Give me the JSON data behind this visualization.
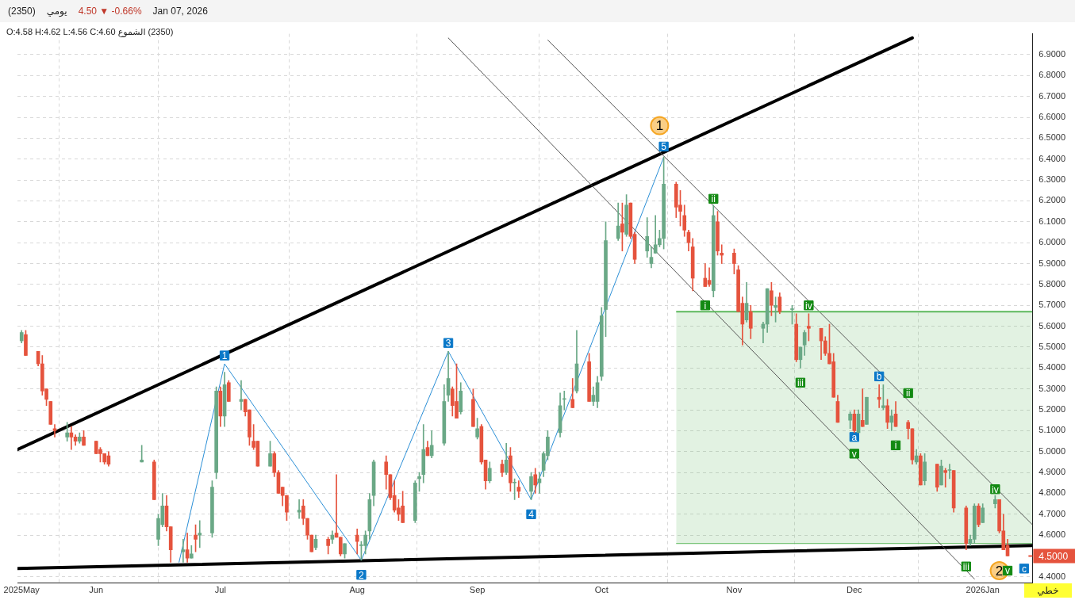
{
  "chart_data": {
    "type": "candlestick",
    "title": "(2350)",
    "subtitle": "يومي",
    "annotations": [
      "4.50 ▼ -0.66%",
      "Jan 07, 2026",
      "(2350) الشموع O:4.58 H:4.62 L:4.56 C:4.60",
      "خطي",
      {
        "text": "1",
        "x": "2025-07-02",
        "y": 5.46
      },
      {
        "text": "2",
        "x": "2025-08-04",
        "y": 4.41
      },
      {
        "text": "3",
        "x": "2025-08-25",
        "y": 5.52
      },
      {
        "text": "4",
        "x": "2025-09-14",
        "y": 4.7
      },
      {
        "text": "5",
        "x": "2025-10-16",
        "y": 6.46
      },
      {
        "text": "a",
        "x": "2025-12-01",
        "y": 5.07
      },
      {
        "text": "b",
        "x": "2025-12-07",
        "y": 5.36
      },
      {
        "text": "c",
        "x": "2026-01-11",
        "y": 4.44
      },
      {
        "text": "i",
        "x": "2025-10-26",
        "y": 5.7
      },
      {
        "text": "ii",
        "x": "2025-10-28",
        "y": 6.21
      },
      {
        "text": "iii",
        "x": "2025-11-18",
        "y": 5.33
      },
      {
        "text": "iv",
        "x": "2025-11-20",
        "y": 5.7
      },
      {
        "text": "v",
        "x": "2025-12-01",
        "y": 4.99
      },
      {
        "text": "i",
        "x": "2025-12-11",
        "y": 5.03
      },
      {
        "text": "ii",
        "x": "2025-12-14",
        "y": 5.28
      },
      {
        "text": "iii",
        "x": "2025-12-28",
        "y": 4.45
      },
      {
        "text": "iv",
        "x": "2026-01-04",
        "y": 4.82
      },
      {
        "text": "v",
        "x": "2026-01-07",
        "y": 4.43
      },
      {
        "text": "1",
        "x": "2025-10-15",
        "y": 6.56
      },
      {
        "text": "2",
        "x": "2026-01-05",
        "y": 4.43
      }
    ],
    "x": [
      "2025-05-14",
      "2025-05-15",
      "2025-05-18",
      "2025-05-19",
      "2025-05-20",
      "2025-05-21",
      "2025-05-22",
      "2025-05-25",
      "2025-05-26",
      "2025-05-27",
      "2025-05-28",
      "2025-05-29",
      "2025-06-01",
      "2025-06-02",
      "2025-06-03",
      "2025-06-04",
      "2025-06-12",
      "2025-06-15",
      "2025-06-16",
      "2025-06-17",
      "2025-06-18",
      "2025-06-19",
      "2025-06-22",
      "2025-06-23",
      "2025-06-24",
      "2025-06-25",
      "2025-06-26",
      "2025-06-29",
      "2025-06-30",
      "2025-07-01",
      "2025-07-02",
      "2025-07-03",
      "2025-07-06",
      "2025-07-07",
      "2025-07-08",
      "2025-07-09",
      "2025-07-10",
      "2025-07-13",
      "2025-07-14",
      "2025-07-15",
      "2025-07-16",
      "2025-07-17",
      "2025-07-20",
      "2025-07-21",
      "2025-07-22",
      "2025-07-23",
      "2025-07-24",
      "2025-07-27",
      "2025-07-28",
      "2025-07-29",
      "2025-07-30",
      "2025-07-31",
      "2025-08-03",
      "2025-08-04",
      "2025-08-05",
      "2025-08-06",
      "2025-08-07",
      "2025-08-10",
      "2025-08-11",
      "2025-08-12",
      "2025-08-13",
      "2025-08-14",
      "2025-08-17",
      "2025-08-18",
      "2025-08-19",
      "2025-08-20",
      "2025-08-21",
      "2025-08-24",
      "2025-08-25",
      "2025-08-26",
      "2025-08-27",
      "2025-08-28",
      "2025-08-31",
      "2025-09-01",
      "2025-09-02",
      "2025-09-03",
      "2025-09-04",
      "2025-09-07",
      "2025-09-08",
      "2025-09-09",
      "2025-09-10",
      "2025-09-11",
      "2025-09-14",
      "2025-09-15",
      "2025-09-16",
      "2025-09-17",
      "2025-09-18",
      "2025-09-21",
      "2025-09-22",
      "2025-09-24",
      "2025-09-25",
      "2025-09-28",
      "2025-09-29",
      "2025-09-30",
      "2025-10-01",
      "2025-10-02",
      "2025-10-05",
      "2025-10-06",
      "2025-10-07",
      "2025-10-08",
      "2025-10-09",
      "2025-10-12",
      "2025-10-13",
      "2025-10-14",
      "2025-10-15",
      "2025-10-16",
      "2025-10-19",
      "2025-10-20",
      "2025-10-21",
      "2025-10-22",
      "2025-10-23",
      "2025-10-26",
      "2025-10-27",
      "2025-10-28",
      "2025-10-29",
      "2025-10-30",
      "2025-11-02",
      "2025-11-03",
      "2025-11-04",
      "2025-11-05",
      "2025-11-06",
      "2025-11-09",
      "2025-11-10",
      "2025-11-11",
      "2025-11-12",
      "2025-11-13",
      "2025-11-16",
      "2025-11-17",
      "2025-11-18",
      "2025-11-19",
      "2025-11-20",
      "2025-11-23",
      "2025-11-24",
      "2025-11-25",
      "2025-11-26",
      "2025-11-27",
      "2025-11-30",
      "2025-12-01",
      "2025-12-02",
      "2025-12-03",
      "2025-12-04",
      "2025-12-07",
      "2025-12-08",
      "2025-12-09",
      "2025-12-10",
      "2025-12-11",
      "2025-12-14",
      "2025-12-15",
      "2025-12-16",
      "2025-12-17",
      "2025-12-18",
      "2025-12-21",
      "2025-12-22",
      "2025-12-23",
      "2025-12-24",
      "2025-12-25",
      "2025-12-28",
      "2025-12-29",
      "2025-12-30",
      "2025-12-31",
      "2026-01-01",
      "2026-01-04",
      "2026-01-05",
      "2026-01-06",
      "2026-01-07"
    ],
    "ohlc": [
      [
        5.53,
        5.58,
        5.52,
        5.57
      ],
      [
        5.56,
        5.58,
        5.46,
        5.46
      ],
      [
        5.48,
        5.48,
        5.41,
        5.42
      ],
      [
        5.42,
        5.46,
        5.27,
        5.29
      ],
      [
        5.3,
        5.3,
        5.22,
        5.25
      ],
      [
        5.24,
        5.24,
        5.13,
        5.13
      ],
      [
        5.11,
        5.13,
        5.07,
        5.1
      ],
      [
        5.07,
        5.14,
        5.05,
        5.09
      ],
      [
        5.09,
        5.12,
        5.01,
        5.07
      ],
      [
        5.07,
        5.08,
        5.03,
        5.05
      ],
      [
        5.05,
        5.09,
        5.04,
        5.07
      ],
      [
        5.07,
        5.1,
        5.03,
        5.03
      ],
      [
        5.05,
        5.05,
        4.99,
        4.99
      ],
      [
        5.01,
        5.02,
        4.95,
        4.99
      ],
      [
        4.99,
        4.99,
        4.94,
        4.95
      ],
      [
        4.98,
        5.0,
        4.93,
        4.94
      ],
      [
        4.95,
        5.03,
        4.95,
        4.96
      ],
      [
        4.95,
        4.96,
        4.77,
        4.77
      ],
      [
        4.58,
        4.7,
        4.55,
        4.68
      ],
      [
        4.65,
        4.8,
        4.64,
        4.74
      ],
      [
        4.74,
        4.79,
        4.62,
        4.64
      ],
      [
        4.64,
        4.64,
        4.47,
        4.53
      ],
      [
        4.52,
        4.58,
        4.47,
        4.53
      ],
      [
        4.53,
        4.61,
        4.47,
        4.49
      ],
      [
        4.49,
        4.55,
        4.49,
        4.51
      ],
      [
        4.6,
        4.65,
        4.52,
        4.58
      ],
      [
        4.6,
        4.67,
        4.54,
        4.61
      ],
      [
        4.61,
        4.86,
        4.59,
        4.83
      ],
      [
        4.9,
        5.31,
        4.87,
        5.29
      ],
      [
        5.29,
        5.31,
        5.12,
        5.17
      ],
      [
        5.17,
        5.38,
        5.12,
        5.32
      ],
      [
        5.33,
        5.34,
        5.24,
        5.24
      ],
      [
        5.24,
        5.34,
        5.2,
        5.25
      ],
      [
        5.25,
        5.25,
        5.17,
        5.19
      ],
      [
        5.2,
        5.2,
        5.03,
        5.07
      ],
      [
        5.05,
        5.13,
        5.01,
        5.02
      ],
      [
        5.05,
        5.05,
        4.93,
        4.93
      ],
      [
        4.93,
        5.05,
        4.93,
        4.99
      ],
      [
        4.99,
        5.0,
        4.88,
        4.9
      ],
      [
        4.9,
        4.91,
        4.8,
        4.8
      ],
      [
        4.83,
        4.83,
        4.74,
        4.79
      ],
      [
        4.79,
        4.79,
        4.67,
        4.71
      ],
      [
        4.71,
        4.77,
        4.68,
        4.72
      ],
      [
        4.74,
        4.77,
        4.65,
        4.68
      ],
      [
        4.68,
        4.68,
        4.58,
        4.6
      ],
      [
        4.6,
        4.6,
        4.52,
        4.52
      ],
      [
        4.54,
        4.6,
        4.53,
        4.58
      ],
      [
        4.58,
        4.59,
        4.51,
        4.55
      ],
      [
        4.58,
        4.62,
        4.56,
        4.6
      ],
      [
        4.61,
        4.89,
        4.59,
        4.59
      ],
      [
        4.59,
        4.59,
        4.5,
        4.51
      ],
      [
        4.51,
        4.56,
        4.49,
        4.56
      ],
      [
        4.6,
        4.63,
        4.51,
        4.57
      ],
      [
        4.55,
        4.57,
        4.48,
        4.55
      ],
      [
        4.55,
        4.62,
        4.51,
        4.6
      ],
      [
        4.62,
        4.8,
        4.58,
        4.77
      ],
      [
        4.79,
        4.96,
        4.74,
        4.95
      ],
      [
        4.95,
        4.98,
        4.82,
        4.89
      ],
      [
        4.89,
        4.89,
        4.77,
        4.78
      ],
      [
        4.79,
        4.86,
        4.71,
        4.72
      ],
      [
        4.73,
        4.77,
        4.67,
        4.7
      ],
      [
        4.74,
        4.81,
        4.66,
        4.66
      ],
      [
        4.67,
        4.86,
        4.66,
        4.85
      ],
      [
        4.87,
        4.9,
        4.81,
        4.88
      ],
      [
        4.89,
        5.13,
        4.85,
        5.01
      ],
      [
        5.02,
        5.05,
        4.98,
        4.98
      ],
      [
        4.98,
        5.1,
        4.97,
        5.03
      ],
      [
        5.04,
        5.32,
        5.03,
        5.24
      ],
      [
        5.27,
        5.48,
        5.24,
        5.35
      ],
      [
        5.3,
        5.31,
        5.17,
        5.22
      ],
      [
        5.24,
        5.42,
        5.16,
        5.16
      ],
      [
        5.19,
        5.33,
        5.18,
        5.29
      ],
      [
        5.25,
        5.3,
        5.12,
        5.12
      ],
      [
        5.07,
        5.16,
        5.06,
        5.11
      ],
      [
        5.12,
        5.13,
        4.94,
        4.95
      ],
      [
        4.96,
        4.96,
        4.82,
        4.86
      ],
      [
        4.86,
        4.95,
        4.85,
        4.92
      ],
      [
        4.94,
        4.96,
        4.88,
        4.9
      ],
      [
        4.9,
        5.04,
        4.89,
        4.96
      ],
      [
        4.98,
        5.02,
        4.81,
        4.85
      ],
      [
        4.85,
        4.87,
        4.77,
        4.85
      ],
      [
        4.83,
        4.86,
        4.78,
        4.81
      ],
      [
        4.81,
        4.9,
        4.77,
        4.88
      ],
      [
        4.89,
        4.92,
        4.8,
        4.84
      ],
      [
        4.85,
        4.9,
        4.8,
        4.87
      ],
      [
        4.91,
        5.0,
        4.88,
        4.99
      ],
      [
        4.98,
        5.1,
        4.96,
        5.07
      ],
      [
        5.09,
        5.28,
        5.07,
        5.22
      ],
      [
        5.25,
        5.29,
        5.2,
        5.25
      ],
      [
        5.25,
        5.35,
        5.21,
        5.21
      ],
      [
        5.29,
        5.58,
        5.28,
        5.42
      ],
      [
        5.43,
        5.47,
        5.24,
        5.24
      ],
      [
        5.24,
        5.31,
        5.22,
        5.27
      ],
      [
        5.24,
        5.36,
        5.21,
        5.33
      ],
      [
        5.36,
        5.69,
        5.34,
        5.65
      ],
      [
        5.68,
        6.1,
        5.55,
        6.01
      ],
      [
        6.02,
        6.19,
        6.01,
        6.08
      ],
      [
        6.09,
        6.19,
        5.96,
        6.05
      ],
      [
        6.04,
        6.23,
        6.03,
        6.18
      ],
      [
        6.19,
        6.19,
        6.02,
        6.03
      ],
      [
        6.04,
        6.05,
        5.9,
        5.92
      ],
      [
        5.96,
        6.12,
        5.93,
        6.03
      ],
      [
        5.9,
        5.98,
        5.88,
        5.93
      ],
      [
        5.95,
        6.13,
        5.95,
        5.99
      ],
      [
        5.99,
        6.06,
        5.98,
        6.02
      ],
      [
        6.02,
        6.41,
        5.97,
        6.28
      ],
      [
        6.28,
        6.29,
        6.12,
        6.17
      ],
      [
        6.18,
        6.25,
        6.08,
        6.15
      ],
      [
        6.13,
        6.18,
        6.03,
        6.06
      ],
      [
        6.05,
        6.06,
        5.96,
        6.0
      ],
      [
        5.98,
        6.02,
        5.77,
        5.83
      ],
      [
        5.83,
        5.9,
        5.79,
        5.79
      ],
      [
        5.82,
        5.88,
        5.79,
        5.8
      ],
      [
        5.77,
        6.18,
        5.74,
        6.13
      ],
      [
        6.1,
        6.15,
        5.94,
        5.96
      ],
      [
        5.95,
        5.99,
        5.9,
        5.94
      ],
      [
        5.95,
        5.97,
        5.85,
        5.9
      ],
      [
        5.87,
        5.89,
        5.67,
        5.67
      ],
      [
        5.71,
        5.74,
        5.51,
        5.61
      ],
      [
        5.63,
        5.81,
        5.62,
        5.71
      ],
      [
        5.67,
        5.7,
        5.54,
        5.59
      ],
      [
        5.59,
        5.62,
        5.52,
        5.61
      ],
      [
        5.61,
        5.78,
        5.57,
        5.78
      ],
      [
        5.77,
        5.81,
        5.65,
        5.7
      ],
      [
        5.69,
        5.74,
        5.62,
        5.7
      ],
      [
        5.74,
        5.76,
        5.66,
        5.67
      ],
      [
        5.68,
        5.7,
        5.61,
        5.68
      ],
      [
        5.61,
        5.66,
        5.43,
        5.44
      ],
      [
        5.44,
        5.5,
        5.4,
        5.5
      ],
      [
        5.51,
        5.58,
        5.46,
        5.57
      ],
      [
        5.6,
        5.66,
        5.53,
        5.59
      ],
      [
        5.59,
        5.59,
        5.44,
        5.53
      ],
      [
        5.53,
        5.55,
        5.46,
        5.47
      ],
      [
        5.47,
        5.61,
        5.42,
        5.42
      ],
      [
        5.43,
        5.47,
        5.26,
        5.26
      ],
      [
        5.24,
        5.27,
        5.14,
        5.14
      ],
      [
        5.15,
        5.19,
        5.11,
        5.18
      ],
      [
        5.18,
        5.2,
        5.09,
        5.1
      ],
      [
        5.09,
        5.2,
        5.09,
        5.18
      ],
      [
        5.15,
        5.3,
        5.12,
        5.12
      ],
      [
        5.13,
        5.26,
        5.13,
        5.26
      ],
      [
        5.26,
        5.32,
        5.21,
        5.25
      ],
      [
        5.21,
        5.32,
        5.2,
        5.22
      ],
      [
        5.22,
        5.25,
        5.11,
        5.14
      ],
      [
        5.14,
        5.2,
        5.1,
        5.17
      ],
      [
        5.18,
        5.24,
        5.12,
        5.12
      ],
      [
        5.14,
        5.15,
        5.06,
        5.11
      ],
      [
        5.11,
        5.11,
        4.94,
        4.96
      ],
      [
        4.95,
        5.01,
        4.94,
        4.98
      ],
      [
        4.98,
        4.99,
        4.84,
        4.84
      ],
      [
        4.86,
        4.99,
        4.84,
        4.95
      ],
      [
        4.94,
        4.94,
        4.81,
        4.83
      ],
      [
        4.84,
        4.96,
        4.84,
        4.93
      ],
      [
        4.91,
        4.92,
        4.83,
        4.9
      ],
      [
        4.91,
        4.94,
        4.87,
        4.91
      ],
      [
        4.91,
        4.91,
        4.71,
        4.73
      ],
      [
        4.73,
        4.74,
        4.53,
        4.56
      ],
      [
        4.56,
        4.6,
        4.55,
        4.58
      ],
      [
        4.58,
        4.75,
        4.56,
        4.74
      ],
      [
        4.74,
        4.75,
        4.64,
        4.65
      ],
      [
        4.66,
        4.75,
        4.66,
        4.73
      ],
      [
        4.75,
        4.79,
        4.73,
        4.77
      ],
      [
        4.77,
        4.77,
        4.61,
        4.62
      ],
      [
        4.62,
        4.7,
        4.53,
        4.53
      ],
      [
        4.55,
        4.58,
        4.5,
        4.5
      ]
    ],
    "colors": [
      "#6aa886",
      "#e5533d",
      "#e5533d",
      "#e5533d",
      "#e5533d",
      "#e5533d",
      "#e5533d",
      "#6aa886",
      "#e5533d",
      "#e5533d",
      "#6aa886",
      "#e5533d",
      "#e5533d",
      "#e5533d",
      "#e5533d",
      "#e5533d",
      "#6aa886",
      "#e5533d",
      "#6aa886",
      "#6aa886",
      "#e5533d",
      "#e5533d",
      "#6aa886",
      "#e5533d",
      "#6aa886",
      "#e5533d",
      "#6aa886",
      "#6aa886",
      "#6aa886",
      "#e5533d",
      "#6aa886",
      "#e5533d",
      "#6aa886",
      "#e5533d",
      "#e5533d",
      "#e5533d",
      "#e5533d",
      "#6aa886",
      "#e5533d",
      "#e5533d",
      "#e5533d",
      "#e5533d",
      "#6aa886",
      "#e5533d",
      "#e5533d",
      "#e5533d",
      "#6aa886",
      "#e5533d",
      "#6aa886",
      "#e5533d",
      "#e5533d",
      "#6aa886",
      "#e5533d",
      "#6aa886",
      "#6aa886",
      "#6aa886",
      "#6aa886",
      "#e5533d",
      "#e5533d",
      "#e5533d",
      "#e5533d",
      "#e5533d",
      "#6aa886",
      "#6aa886",
      "#6aa886",
      "#e5533d",
      "#6aa886",
      "#6aa886",
      "#6aa886",
      "#e5533d",
      "#e5533d",
      "#6aa886",
      "#e5533d",
      "#6aa886",
      "#e5533d",
      "#e5533d",
      "#6aa886",
      "#e5533d",
      "#6aa886",
      "#e5533d",
      "#6aa886",
      "#e5533d",
      "#6aa886",
      "#e5533d",
      "#6aa886",
      "#6aa886",
      "#6aa886",
      "#6aa886",
      "#6aa886",
      "#e5533d",
      "#6aa886",
      "#e5533d",
      "#6aa886",
      "#6aa886",
      "#6aa886",
      "#6aa886",
      "#6aa886",
      "#e5533d",
      "#6aa886",
      "#e5533d",
      "#e5533d",
      "#6aa886",
      "#6aa886",
      "#6aa886",
      "#6aa886",
      "#6aa886",
      "#e5533d",
      "#e5533d",
      "#e5533d",
      "#e5533d",
      "#e5533d",
      "#e5533d",
      "#e5533d",
      "#6aa886",
      "#e5533d",
      "#e5533d",
      "#e5533d",
      "#e5533d",
      "#e5533d",
      "#6aa886",
      "#e5533d",
      "#6aa886",
      "#6aa886",
      "#e5533d",
      "#6aa886",
      "#e5533d",
      "#6aa886",
      "#e5533d",
      "#6aa886",
      "#6aa886",
      "#e5533d",
      "#e5533d",
      "#e5533d",
      "#e5533d",
      "#e5533d",
      "#e5533d",
      "#6aa886",
      "#e5533d",
      "#6aa886",
      "#e5533d",
      "#6aa886",
      "#e5533d",
      "#6aa886",
      "#e5533d",
      "#6aa886",
      "#e5533d",
      "#e5533d",
      "#e5533d",
      "#6aa886",
      "#e5533d",
      "#6aa886",
      "#e5533d",
      "#6aa886",
      "#e5533d",
      "#6aa886",
      "#e5533d",
      "#e5533d",
      "#6aa886",
      "#6aa886",
      "#e5533d",
      "#6aa886",
      "#6aa886",
      "#e5533d",
      "#e5533d",
      "#e5533d"
    ],
    "series": [
      {
        "type": "line",
        "color": "#5cb85c",
        "x": [
          "2025-10-19",
          "2026-01-13"
        ],
        "values": [
          5.67,
          5.67
        ],
        "lower": [
          4.56,
          4.56
        ],
        "upper": [
          5.67,
          5.67
        ]
      },
      {
        "type": "line",
        "color": "#000000",
        "x": [
          "2025-05-13",
          "2025-12-15"
        ],
        "values": [
          5.01,
          6.98
        ]
      },
      {
        "type": "line",
        "color": "#000000",
        "x": [
          "2025-05-13",
          "2026-01-13"
        ],
        "values": [
          4.44,
          4.55
        ]
      },
      {
        "type": "line",
        "color": "#555555",
        "x": [
          "2025-08-25",
          "2025-12-30"
        ],
        "values": [
          6.98,
          4.39
        ]
      },
      {
        "type": "line",
        "color": "#555555",
        "x": [
          "2025-09-18",
          "2026-01-13"
        ],
        "values": [
          6.97,
          4.65
        ]
      },
      {
        "type": "line",
        "color": "#2b8fd6",
        "x": [
          "2025-06-21",
          "2025-07-02",
          "2025-08-04",
          "2025-08-25",
          "2025-09-14",
          "2025-10-16"
        ],
        "values": [
          4.47,
          5.42,
          4.48,
          5.48,
          4.77,
          6.41
        ]
      },
      {
        "type": "scatter",
        "marker": "square",
        "color": "#0a78c8",
        "x": [
          "2025-07-02",
          "2025-08-04",
          "2025-08-25",
          "2025-09-14",
          "2025-10-16",
          "2025-12-01",
          "2025-12-07",
          "2026-01-11"
        ],
        "values": [
          5.46,
          4.41,
          5.52,
          4.7,
          6.46,
          5.07,
          5.36,
          4.44
        ]
      },
      {
        "type": "scatter",
        "marker": "square",
        "color": "#138a13",
        "x": [
          "2025-10-26",
          "2025-10-28",
          "2025-11-18",
          "2025-11-20",
          "2025-12-01",
          "2025-12-11",
          "2025-12-14",
          "2025-12-28",
          "2026-01-04",
          "2026-01-07"
        ],
        "values": [
          5.7,
          6.21,
          5.33,
          5.7,
          4.99,
          5.03,
          5.28,
          4.45,
          4.82,
          4.43
        ]
      },
      {
        "type": "scatter",
        "marker": "circle",
        "color": "#f5a623",
        "x": [
          "2025-10-15",
          "2026-01-05"
        ],
        "values": [
          6.56,
          4.43
        ]
      }
    ],
    "ref_lines": [
      {
        "axis": "y",
        "value": 4.5,
        "label": "4.5000",
        "color": "#e5533d"
      }
    ],
    "xlim": [
      "2025-05-13",
      "2026-01-13"
    ],
    "xticks": [
      {
        "value": "2025-05-14",
        "label": "2025May"
      },
      {
        "value": "2025-06-01",
        "label": "Jun"
      },
      {
        "value": "2025-07-01",
        "label": "Jul"
      },
      {
        "value": "2025-08-03",
        "label": "Aug"
      },
      {
        "value": "2025-09-01",
        "label": "Sep"
      },
      {
        "value": "2025-10-01",
        "label": "Oct"
      },
      {
        "value": "2025-11-02",
        "label": "Nov"
      },
      {
        "value": "2025-12-01",
        "label": "Dec"
      },
      {
        "value": "2026-01-01",
        "label": "2026Jan"
      }
    ],
    "ylim": [
      4.37,
      7.0
    ],
    "yticks": [
      {
        "value": 4.4,
        "label": "4.4000"
      },
      {
        "value": 4.6,
        "label": "4.6000"
      },
      {
        "value": 4.7,
        "label": "4.7000"
      },
      {
        "value": 4.8,
        "label": "4.8000"
      },
      {
        "value": 4.9,
        "label": "4.9000"
      },
      {
        "value": 5.0,
        "label": "5.0000"
      },
      {
        "value": 5.1,
        "label": "5.1000"
      },
      {
        "value": 5.2,
        "label": "5.2000"
      },
      {
        "value": 5.3,
        "label": "5.3000"
      },
      {
        "value": 5.4,
        "label": "5.4000"
      },
      {
        "value": 5.5,
        "label": "5.5000"
      },
      {
        "value": 5.6,
        "label": "5.6000"
      },
      {
        "value": 5.7,
        "label": "5.7000"
      },
      {
        "value": 5.8,
        "label": "5.8000"
      },
      {
        "value": 5.9,
        "label": "5.9000"
      },
      {
        "value": 6.0,
        "label": "6.0000"
      },
      {
        "value": 6.1,
        "label": "6.1000"
      },
      {
        "value": 6.2,
        "label": "6.2000"
      },
      {
        "value": 6.3,
        "label": "6.3000"
      },
      {
        "value": 6.4,
        "label": "6.4000"
      },
      {
        "value": 6.5,
        "label": "6.5000"
      },
      {
        "value": 6.6,
        "label": "6.6000"
      },
      {
        "value": 6.7,
        "label": "6.7000"
      },
      {
        "value": 6.8,
        "label": "6.8000"
      },
      {
        "value": 6.9,
        "label": "6.9000"
      }
    ],
    "grid": true,
    "legend": false
  }
}
